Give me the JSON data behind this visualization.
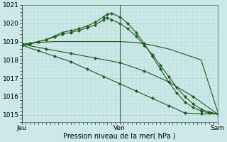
{
  "bg_color": "#cce8e8",
  "grid_color": "#aacccc",
  "line_color": "#1a5c1a",
  "title": "Pression niveau de la mer( hPa )",
  "ylim": [
    1014.6,
    1021.0
  ],
  "yticks": [
    1015,
    1016,
    1017,
    1018,
    1019,
    1020
  ],
  "xlim": [
    0,
    48
  ],
  "xtick_positions": [
    0,
    24,
    48
  ],
  "xtick_labels": [
    "Jeu",
    "Ven",
    "Sam"
  ],
  "series": [
    {
      "x": [
        0,
        4,
        8,
        12,
        16,
        20,
        24,
        28,
        32,
        36,
        40,
        44,
        48
      ],
      "y": [
        1018.85,
        1018.95,
        1019.0,
        1019.0,
        1019.0,
        1019.0,
        1019.0,
        1018.95,
        1018.8,
        1018.6,
        1018.3,
        1018.0,
        1015.2
      ],
      "marker": null,
      "lw": 0.8
    },
    {
      "x": [
        0,
        2,
        4,
        6,
        8,
        10,
        12,
        14,
        16,
        18,
        20,
        21,
        22,
        24,
        26,
        28,
        30,
        32,
        34,
        36,
        38,
        40,
        42,
        44,
        46,
        48
      ],
      "y": [
        1018.85,
        1018.9,
        1019.0,
        1019.1,
        1019.25,
        1019.4,
        1019.5,
        1019.6,
        1019.75,
        1019.9,
        1020.2,
        1020.3,
        1020.2,
        1020.0,
        1019.7,
        1019.3,
        1018.8,
        1018.3,
        1017.7,
        1017.1,
        1016.5,
        1016.0,
        1015.6,
        1015.3,
        1015.15,
        1015.05
      ],
      "marker": "D",
      "lw": 0.8
    },
    {
      "x": [
        0,
        2,
        4,
        6,
        8,
        10,
        12,
        14,
        16,
        18,
        20,
        21,
        22,
        24,
        26,
        28,
        30,
        32,
        34,
        36,
        38,
        40,
        42,
        44,
        46,
        48
      ],
      "y": [
        1018.8,
        1018.85,
        1019.0,
        1019.1,
        1019.3,
        1019.5,
        1019.6,
        1019.7,
        1019.85,
        1020.05,
        1020.35,
        1020.5,
        1020.55,
        1020.35,
        1020.0,
        1019.5,
        1018.9,
        1018.2,
        1017.5,
        1016.8,
        1016.2,
        1015.7,
        1015.4,
        1015.2,
        1015.1,
        1015.05
      ],
      "marker": "D",
      "lw": 0.8
    },
    {
      "x": [
        0,
        6,
        12,
        18,
        24,
        30,
        36,
        42,
        48
      ],
      "y": [
        1018.85,
        1018.6,
        1018.35,
        1018.1,
        1017.85,
        1017.4,
        1016.8,
        1016.0,
        1015.05
      ],
      "marker": "D",
      "lw": 0.8
    },
    {
      "x": [
        0,
        4,
        8,
        12,
        16,
        20,
        24,
        28,
        32,
        36,
        40,
        44,
        48
      ],
      "y": [
        1018.8,
        1018.5,
        1018.2,
        1017.9,
        1017.5,
        1017.1,
        1016.7,
        1016.3,
        1015.9,
        1015.5,
        1015.1,
        1015.05,
        1015.05
      ],
      "marker": "D",
      "lw": 0.8
    }
  ]
}
